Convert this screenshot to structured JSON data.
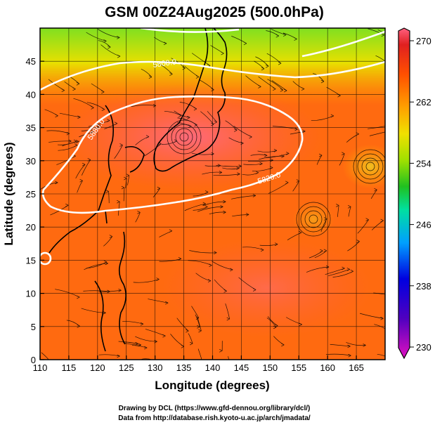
{
  "chart_data": {
    "type": "heatmap",
    "title": "GSM 00Z24Aug2025 (500.0hPa)",
    "xlabel": "Longitude (degrees)",
    "ylabel": "Latitude  (degrees)",
    "xlim": [
      110,
      170
    ],
    "ylim": [
      0,
      50
    ],
    "x_ticks": [
      110,
      115,
      120,
      125,
      130,
      135,
      140,
      145,
      150,
      155,
      160,
      165
    ],
    "y_ticks": [
      0,
      5,
      10,
      15,
      20,
      25,
      30,
      35,
      40,
      45
    ],
    "colorbar": {
      "min": 230,
      "max": 270,
      "ticks": [
        230,
        238,
        246,
        254,
        262,
        270
      ],
      "colors": [
        "#e010c0",
        "#5000c0",
        "#0000e0",
        "#00a0ff",
        "#00e0a0",
        "#20c020",
        "#a0e000",
        "#f0e000",
        "#ffa000",
        "#ff5000",
        "#e02020",
        "#ff6080"
      ]
    },
    "contours": [
      {
        "label": "5880.0",
        "level": 5880,
        "color": "#ffffff"
      },
      {
        "label": "5800.0",
        "level": 5800,
        "color": "#ffffff"
      },
      {
        "label": "5820.0",
        "level": 5820,
        "color": "#ffffff"
      }
    ],
    "grid": true,
    "overlay": "wind streamlines and coastlines"
  },
  "footer": {
    "line1": "Drawing by DCL (https://www.gfd-dennou.org/library/dcl/)",
    "line2": "Data from http://database.rish.kyoto-u.ac.jp/arch/jmadata/"
  }
}
